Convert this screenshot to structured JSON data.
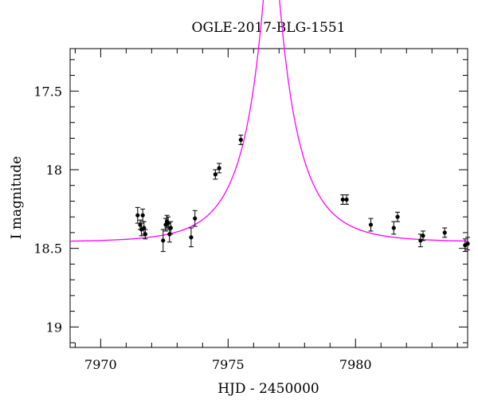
{
  "chart_data": {
    "type": "scatter",
    "title": "OGLE-2017-BLG-1551",
    "xlabel": "HJD - 2450000",
    "ylabel": "I magnitude",
    "xlim": [
      7968.8,
      7984.4
    ],
    "ylim": [
      19.13,
      17.23
    ],
    "y_inverted": true,
    "grid": false,
    "x_ticks": [
      7970,
      7975,
      7980
    ],
    "x_tick_labels": [
      "7970",
      "7975",
      "7980"
    ],
    "y_ticks": [
      17.5,
      18,
      18.5,
      19
    ],
    "y_tick_labels": [
      "17.5",
      "18",
      "18.5",
      "19"
    ],
    "colors": {
      "model": "#ff00ff",
      "points": "#000000",
      "frame": "#000000"
    },
    "model": {
      "name": "",
      "type": "point-lens",
      "t0": 7976.7,
      "tE": 2.0,
      "u0": 0.139,
      "baseline_mag": 18.46,
      "blend_fraction": 0.82
    },
    "series": [
      {
        "x": [
          7971.45,
          7971.55,
          7971.6,
          7971.65,
          7971.7,
          7971.75,
          7972.45,
          7972.55,
          7972.6,
          7972.65,
          7972.7,
          7972.75,
          7973.55,
          7973.7,
          7974.5,
          7974.65,
          7975.5,
          7979.5,
          7979.65,
          7980.6,
          7981.5,
          7981.65,
          7982.55,
          7982.65,
          7983.5,
          7984.3,
          7984.4
        ],
        "y": [
          18.29,
          18.35,
          18.38,
          18.29,
          18.37,
          18.41,
          18.45,
          18.35,
          18.33,
          18.34,
          18.41,
          18.37,
          18.43,
          18.31,
          18.03,
          17.99,
          17.81,
          18.19,
          18.19,
          18.35,
          18.37,
          18.3,
          18.45,
          18.42,
          18.4,
          18.48,
          18.47
        ],
        "err": [
          0.05,
          0.03,
          0.04,
          0.04,
          0.04,
          0.03,
          0.07,
          0.04,
          0.04,
          0.04,
          0.05,
          0.04,
          0.06,
          0.05,
          0.03,
          0.03,
          0.03,
          0.03,
          0.03,
          0.04,
          0.04,
          0.03,
          0.04,
          0.03,
          0.03,
          0.04,
          0.04
        ]
      }
    ]
  }
}
